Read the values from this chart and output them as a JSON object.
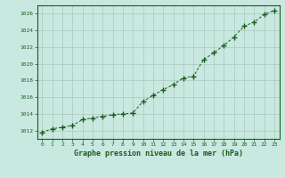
{
  "x": [
    0,
    1,
    2,
    3,
    4,
    5,
    6,
    7,
    8,
    9,
    10,
    11,
    12,
    13,
    14,
    15,
    16,
    17,
    18,
    19,
    20,
    21,
    22,
    23
  ],
  "y": [
    1011.8,
    1012.2,
    1012.4,
    1012.6,
    1013.3,
    1013.5,
    1013.7,
    1013.9,
    1014.0,
    1014.1,
    1015.5,
    1016.2,
    1016.9,
    1017.5,
    1018.3,
    1018.5,
    1020.5,
    1021.3,
    1022.2,
    1023.2,
    1024.5,
    1025.0,
    1025.9,
    1026.4
  ],
  "xlabel": "Graphe pression niveau de la mer (hPa)",
  "ylim_min": 1011,
  "ylim_max": 1027,
  "ytick_min": 1012,
  "ytick_max": 1026,
  "ytick_step": 2,
  "line_color": "#1a5c1a",
  "marker_color": "#1a5c1a",
  "bg_color": "#c8e8e0",
  "grid_color": "#a8c8c0",
  "xlabel_color": "#1a5c1a",
  "tick_color": "#1a5c1a",
  "border_color": "#1a5c1a"
}
